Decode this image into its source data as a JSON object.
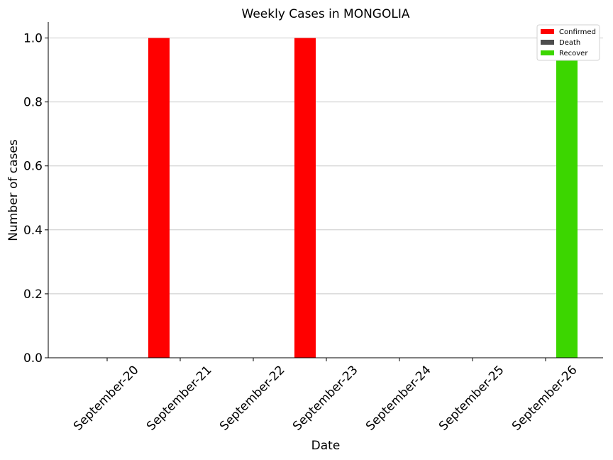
{
  "chart_data": {
    "type": "bar",
    "title": "Weekly Cases in MONGOLIA",
    "xlabel": "Date",
    "ylabel": "Number of cases",
    "categories": [
      "September-20",
      "September-21",
      "September-22",
      "September-23",
      "September-24",
      "September-25",
      "September-26"
    ],
    "series": [
      {
        "name": "Confirmed",
        "color": "#ff0000",
        "values": [
          0,
          1,
          0,
          1,
          0,
          0,
          0
        ]
      },
      {
        "name": "Death",
        "color": "#4d4d4d",
        "values": [
          0,
          0,
          0,
          0,
          0,
          0,
          0
        ]
      },
      {
        "name": "Recover",
        "color": "#3cd600",
        "values": [
          0,
          0,
          0,
          0,
          0,
          0,
          1
        ]
      }
    ],
    "yticks": [
      "0.0",
      "0.2",
      "0.4",
      "0.6",
      "0.8",
      "1.0"
    ],
    "ylim": [
      0,
      1.05
    ],
    "grid": "horizontal",
    "legend_position": "top-right"
  }
}
